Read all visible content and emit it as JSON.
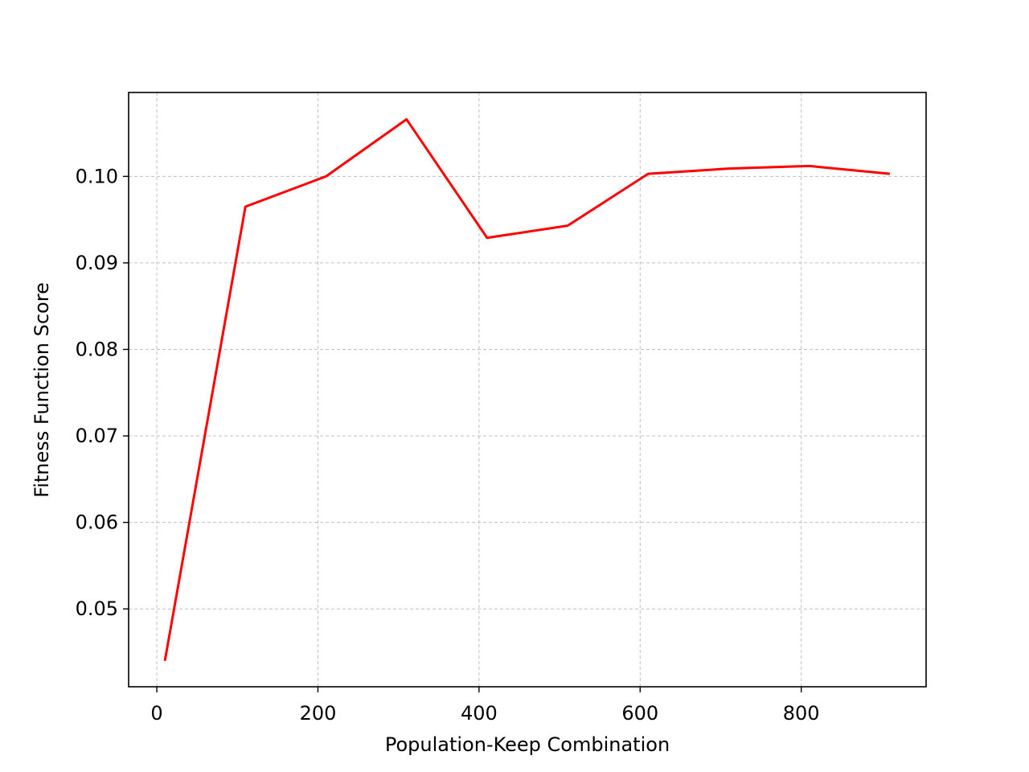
{
  "chart_data": {
    "type": "line",
    "title": "",
    "xlabel": "Population-Keep Combination",
    "ylabel": "Fitness Function Score",
    "xlim": [
      -35,
      955
    ],
    "ylim": [
      0.041,
      0.1097
    ],
    "xticks": [
      0,
      200,
      400,
      600,
      800
    ],
    "xtick_labels": [
      "0",
      "200",
      "400",
      "600",
      "800"
    ],
    "yticks": [
      0.05,
      0.06,
      0.07,
      0.08,
      0.09,
      0.1
    ],
    "ytick_labels": [
      "0.05",
      "0.06",
      "0.07",
      "0.08",
      "0.09",
      "0.10"
    ],
    "grid": true,
    "series": [
      {
        "name": "fitness",
        "color": "#ff0000",
        "x": [
          10,
          110,
          210,
          310,
          410,
          510,
          610,
          710,
          810,
          910
        ],
        "values": [
          0.044,
          0.0965,
          0.1,
          0.1066,
          0.0929,
          0.0943,
          0.1003,
          0.1009,
          0.1012,
          0.1003
        ]
      }
    ]
  }
}
